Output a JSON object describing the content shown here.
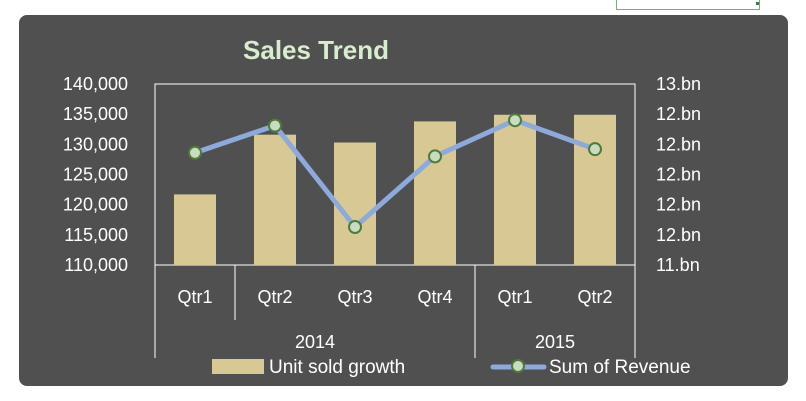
{
  "chart_data": {
    "type": "bar+line",
    "title": "Sales Trend",
    "categories": [
      "Qtr1",
      "Qtr2",
      "Qtr3",
      "Qtr4",
      "Qtr1",
      "Qtr2"
    ],
    "groups": [
      {
        "label": "2014",
        "count": 4
      },
      {
        "label": "2015",
        "count": 2
      }
    ],
    "series": [
      {
        "name": "Unit sold growth",
        "type": "bar",
        "axis": "left",
        "color": "#d8c994",
        "values": [
          121700,
          131600,
          130300,
          133800,
          134900,
          134900
        ]
      },
      {
        "name": "Sum of Revenue",
        "type": "line",
        "axis": "right",
        "color": "#8ea9db",
        "marker_fill": "#c8dcc0",
        "relative_levels": [
          0.62,
          0.77,
          0.21,
          0.6,
          0.8,
          0.64
        ]
      }
    ],
    "y_left": {
      "min": 110000,
      "max": 140000,
      "ticks": [
        "140,000",
        "135,000",
        "130,000",
        "125,000",
        "120,000",
        "115,000",
        "110,000"
      ]
    },
    "y_right": {
      "ticks": [
        "13.bn",
        "12.bn",
        "12.bn",
        "12.bn",
        "12.bn",
        "12.bn",
        "11.bn"
      ]
    },
    "legend": {
      "position": "bottom",
      "items": [
        {
          "label": "Unit sold growth",
          "kind": "bar"
        },
        {
          "label": "Sum of Revenue",
          "kind": "line"
        }
      ]
    },
    "colors": {
      "background": "#505050",
      "title": "#d9ecd0",
      "text": "#ffffff",
      "plot_border": "#ffffff"
    }
  }
}
